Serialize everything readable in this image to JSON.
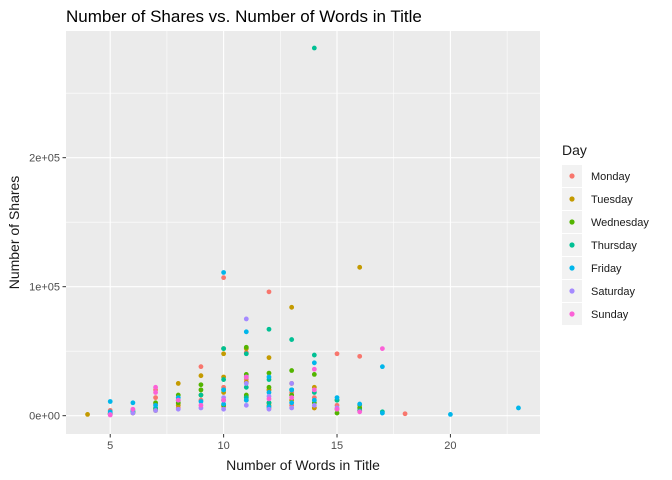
{
  "chart_data": {
    "type": "scatter",
    "title": "Number of Shares vs. Number of Words in Title",
    "xlabel": "Number of Words in Title",
    "ylabel": "Number of Shares",
    "xlim": [
      3.05,
      23.95
    ],
    "ylim": [
      -14200,
      298200
    ],
    "x_ticks": [
      5,
      10,
      15,
      20
    ],
    "x_tick_labels": [
      "5",
      "10",
      "15",
      "20"
    ],
    "y_ticks": [
      0,
      100000,
      200000
    ],
    "y_tick_labels": [
      "0e+00",
      "1e+05",
      "2e+05"
    ],
    "grid": true,
    "legend_title": "Day",
    "legend_position": "right",
    "series": [
      {
        "name": "Monday",
        "color": "#F8766D",
        "points": [
          [
            5,
            2500
          ],
          [
            5,
            4100
          ],
          [
            6,
            2800
          ],
          [
            7,
            9000
          ],
          [
            7,
            14000
          ],
          [
            7,
            20000
          ],
          [
            8,
            6000
          ],
          [
            8,
            9500
          ],
          [
            9,
            38000
          ],
          [
            9,
            12000
          ],
          [
            10,
            107000
          ],
          [
            10,
            22000
          ],
          [
            10,
            7000
          ],
          [
            11,
            49000
          ],
          [
            11,
            28000
          ],
          [
            11,
            12000
          ],
          [
            12,
            96000
          ],
          [
            12,
            20000
          ],
          [
            12,
            6000
          ],
          [
            13,
            18000
          ],
          [
            13,
            8000
          ],
          [
            14,
            14000
          ],
          [
            14,
            6000
          ],
          [
            15,
            48000
          ],
          [
            15,
            8000
          ],
          [
            16,
            46000
          ],
          [
            16,
            4000
          ],
          [
            18,
            1500
          ]
        ]
      },
      {
        "name": "Tuesday",
        "color": "#C49A00",
        "points": [
          [
            4,
            1000
          ],
          [
            5,
            1500
          ],
          [
            6,
            2000
          ],
          [
            7,
            4000
          ],
          [
            8,
            25000
          ],
          [
            8,
            8000
          ],
          [
            9,
            31000
          ],
          [
            9,
            16000
          ],
          [
            10,
            48000
          ],
          [
            10,
            30000
          ],
          [
            10,
            18000
          ],
          [
            11,
            52000
          ],
          [
            11,
            26000
          ],
          [
            11,
            15000
          ],
          [
            12,
            45000
          ],
          [
            12,
            20000
          ],
          [
            12,
            8000
          ],
          [
            13,
            84000
          ],
          [
            13,
            25000
          ],
          [
            13,
            12000
          ],
          [
            14,
            22000
          ],
          [
            14,
            6000
          ],
          [
            15,
            5000
          ],
          [
            16,
            115000
          ],
          [
            16,
            8000
          ]
        ]
      },
      {
        "name": "Wednesday",
        "color": "#53B400",
        "points": [
          [
            5,
            1500
          ],
          [
            6,
            3000
          ],
          [
            7,
            10000
          ],
          [
            7,
            5000
          ],
          [
            8,
            16000
          ],
          [
            8,
            10000
          ],
          [
            9,
            24000
          ],
          [
            9,
            20000
          ],
          [
            10,
            52000
          ],
          [
            10,
            20000
          ],
          [
            10,
            8000
          ],
          [
            11,
            53000
          ],
          [
            11,
            32000
          ],
          [
            11,
            16000
          ],
          [
            12,
            33000
          ],
          [
            12,
            22000
          ],
          [
            12,
            10000
          ],
          [
            13,
            35000
          ],
          [
            13,
            16000
          ],
          [
            14,
            32000
          ],
          [
            14,
            10000
          ],
          [
            15,
            12000
          ],
          [
            15,
            2000
          ],
          [
            16,
            6000
          ]
        ]
      },
      {
        "name": "Thursday",
        "color": "#00C094",
        "points": [
          [
            5,
            1200
          ],
          [
            6,
            2500
          ],
          [
            7,
            6000
          ],
          [
            8,
            12000
          ],
          [
            9,
            16000
          ],
          [
            10,
            52000
          ],
          [
            10,
            28000
          ],
          [
            10,
            12000
          ],
          [
            11,
            48000
          ],
          [
            11,
            22000
          ],
          [
            11,
            14000
          ],
          [
            12,
            67000
          ],
          [
            12,
            28000
          ],
          [
            12,
            10000
          ],
          [
            13,
            59000
          ],
          [
            13,
            20000
          ],
          [
            14,
            285000
          ],
          [
            14,
            47000
          ],
          [
            14,
            18000
          ],
          [
            15,
            12000
          ],
          [
            16,
            4000
          ],
          [
            17,
            3000
          ]
        ]
      },
      {
        "name": "Friday",
        "color": "#00B6EB",
        "points": [
          [
            5,
            11000
          ],
          [
            5,
            3000
          ],
          [
            6,
            10000
          ],
          [
            6,
            4000
          ],
          [
            7,
            8000
          ],
          [
            8,
            14000
          ],
          [
            9,
            11000
          ],
          [
            10,
            111000
          ],
          [
            10,
            20000
          ],
          [
            10,
            9000
          ],
          [
            11,
            65000
          ],
          [
            11,
            30000
          ],
          [
            11,
            12000
          ],
          [
            12,
            30000
          ],
          [
            12,
            18000
          ],
          [
            12,
            7000
          ],
          [
            13,
            20000
          ],
          [
            13,
            10000
          ],
          [
            14,
            41000
          ],
          [
            14,
            12000
          ],
          [
            15,
            14000
          ],
          [
            16,
            9000
          ],
          [
            17,
            38000
          ],
          [
            17,
            2000
          ],
          [
            20,
            1000
          ],
          [
            23,
            6000
          ]
        ]
      },
      {
        "name": "Saturday",
        "color": "#A58AFF",
        "points": [
          [
            5,
            1000
          ],
          [
            6,
            2000
          ],
          [
            7,
            4000
          ],
          [
            8,
            5000
          ],
          [
            9,
            6000
          ],
          [
            10,
            14000
          ],
          [
            10,
            5000
          ],
          [
            11,
            75000
          ],
          [
            11,
            25000
          ],
          [
            11,
            8000
          ],
          [
            12,
            15000
          ],
          [
            12,
            5000
          ],
          [
            13,
            25000
          ],
          [
            13,
            6000
          ],
          [
            14,
            8000
          ],
          [
            15,
            6000
          ]
        ]
      },
      {
        "name": "Sunday",
        "color": "#FB61D7",
        "points": [
          [
            5,
            500
          ],
          [
            6,
            5000
          ],
          [
            7,
            22000
          ],
          [
            7,
            18000
          ],
          [
            8,
            12000
          ],
          [
            9,
            8000
          ],
          [
            10,
            12000
          ],
          [
            11,
            30000
          ],
          [
            12,
            13000
          ],
          [
            13,
            14000
          ],
          [
            14,
            36000
          ],
          [
            14,
            20000
          ],
          [
            15,
            5000
          ],
          [
            16,
            3000
          ],
          [
            17,
            52000
          ]
        ]
      }
    ]
  }
}
